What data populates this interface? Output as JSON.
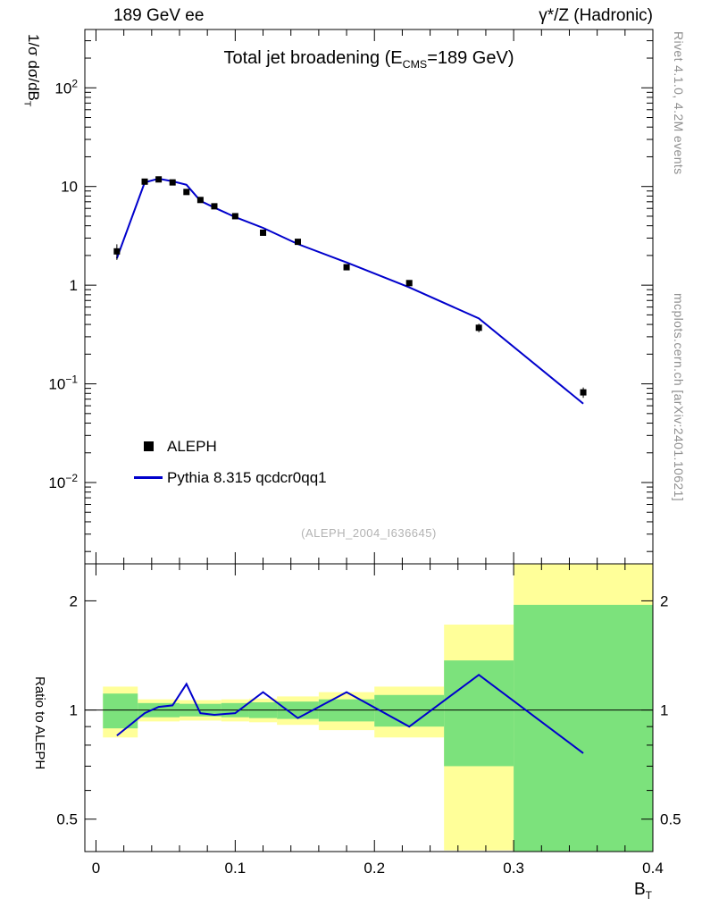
{
  "header": {
    "left": "189 GeV ee",
    "right": "γ*/Z (Hadronic)"
  },
  "title": {
    "pre": "Total jet broadening (E",
    "sub": "CMS",
    "post": "=189 GeV)"
  },
  "watermark": "(ALEPH_2004_I636645)",
  "side_notes": {
    "rivet": "Rivet 4.1.0,  4.2M events",
    "mcplots": "mcplots.cern.ch [arXiv:2401.10621]"
  },
  "legend": {
    "items": [
      {
        "label": "ALEPH",
        "marker": "square"
      },
      {
        "label": "Pythia 8.315 qcdcr0qq1",
        "marker": "line"
      }
    ]
  },
  "axes": {
    "x": {
      "label_pre": "B",
      "label_sub": "T",
      "tick_values": [
        0,
        0.1,
        0.2,
        0.3,
        0.4
      ],
      "tick_labels": [
        "0",
        "0.1",
        "0.2",
        "0.3",
        "0.4"
      ],
      "minor_step": 0.02
    },
    "y_main": {
      "label_pre": "1/σ  dσ/dB",
      "label_sub": "T",
      "tick_values": [
        100,
        10,
        1,
        0.1,
        0.01
      ],
      "tick_labels": [
        {
          "base": "10",
          "exp": "2"
        },
        {
          "base": "10",
          "exp": ""
        },
        {
          "base": "1",
          "exp": ""
        },
        {
          "base": "10",
          "exp": "−1"
        },
        {
          "base": "10",
          "exp": "−2"
        }
      ]
    },
    "y_ratio": {
      "label": "Ratio to ALEPH",
      "tick_values": [
        2,
        1,
        0.5
      ],
      "tick_labels": [
        "2",
        "1",
        "0.5"
      ],
      "minor_tick_values": [
        0.6,
        0.7,
        0.8,
        0.9
      ]
    }
  },
  "chart_data": {
    "type": "line",
    "title": "Total jet broadening (E_CMS=189 GeV)",
    "xlabel": "B_T",
    "ylabel": "1/σ dσ/dB_T",
    "ratio_ylabel": "Ratio to ALEPH",
    "x_range": [
      0,
      0.4
    ],
    "y_scale": "log",
    "y_range": [
      0.0015,
      390
    ],
    "ratio_y_range": [
      0.407,
      2.53
    ],
    "grid": false,
    "legend_position": "inside-left-bottom",
    "x": [
      0.015,
      0.035,
      0.045,
      0.055,
      0.065,
      0.075,
      0.085,
      0.1,
      0.12,
      0.145,
      0.18,
      0.225,
      0.275,
      0.35
    ],
    "series": [
      {
        "name": "ALEPH",
        "role": "data",
        "marker": "square",
        "color": "#000000",
        "values": [
          2.2,
          11.2,
          11.8,
          11.0,
          8.8,
          7.3,
          6.3,
          5.0,
          3.4,
          2.75,
          1.52,
          1.05,
          0.37,
          0.082
        ],
        "yerr_rel": [
          0.18,
          0.03,
          0.03,
          0.03,
          0.035,
          0.035,
          0.035,
          0.04,
          0.04,
          0.045,
          0.05,
          0.06,
          0.1,
          0.12
        ]
      },
      {
        "name": "Pythia 8.315 qcdcr0qq1",
        "role": "mc",
        "marker": "line",
        "color": "#0000cc",
        "values": [
          1.87,
          11.0,
          12.0,
          11.3,
          10.4,
          7.15,
          6.11,
          4.9,
          3.81,
          2.61,
          1.7,
          0.95,
          0.46,
          0.063
        ]
      }
    ],
    "ratio": {
      "name": "Pythia/ALEPH",
      "values": [
        0.85,
        0.98,
        1.02,
        1.03,
        1.18,
        0.98,
        0.97,
        0.98,
        1.12,
        0.95,
        1.12,
        0.9,
        1.25,
        0.76
      ]
    },
    "uncertainty_bands": [
      {
        "xlo": 0.005,
        "xhi": 0.03,
        "yellow": [
          0.84,
          1.16
        ],
        "green": [
          0.89,
          1.11
        ]
      },
      {
        "xlo": 0.03,
        "xhi": 0.06,
        "yellow": [
          0.93,
          1.07
        ],
        "green": [
          0.955,
          1.045
        ]
      },
      {
        "xlo": 0.06,
        "xhi": 0.09,
        "yellow": [
          0.935,
          1.065
        ],
        "green": [
          0.96,
          1.04
        ]
      },
      {
        "xlo": 0.09,
        "xhi": 0.11,
        "yellow": [
          0.93,
          1.07
        ],
        "green": [
          0.955,
          1.045
        ]
      },
      {
        "xlo": 0.11,
        "xhi": 0.13,
        "yellow": [
          0.925,
          1.075
        ],
        "green": [
          0.95,
          1.05
        ]
      },
      {
        "xlo": 0.13,
        "xhi": 0.16,
        "yellow": [
          0.91,
          1.09
        ],
        "green": [
          0.945,
          1.055
        ]
      },
      {
        "xlo": 0.16,
        "xhi": 0.2,
        "yellow": [
          0.88,
          1.12
        ],
        "green": [
          0.93,
          1.07
        ]
      },
      {
        "xlo": 0.2,
        "xhi": 0.25,
        "yellow": [
          0.84,
          1.16
        ],
        "green": [
          0.9,
          1.1
        ]
      },
      {
        "xlo": 0.25,
        "xhi": 0.3,
        "yellow": [
          0.41,
          1.72
        ],
        "green": [
          0.7,
          1.37
        ]
      },
      {
        "xlo": 0.3,
        "xhi": 0.4,
        "yellow": [
          0.34,
          2.55
        ],
        "green": [
          0.37,
          1.95
        ]
      }
    ],
    "band_colors": {
      "yellow": "#ffff99",
      "green": "#7ce27c"
    }
  }
}
